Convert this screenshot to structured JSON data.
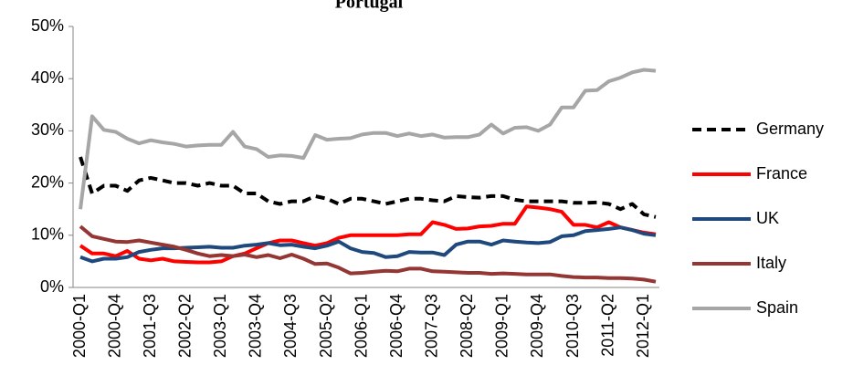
{
  "chart_data": {
    "type": "line",
    "title": "Portugal",
    "categories": [
      "2000-Q1",
      null,
      null,
      "2000-Q4",
      null,
      null,
      "2001-Q3",
      null,
      null,
      "2002-Q2",
      null,
      null,
      "2003-Q1",
      null,
      null,
      "2003-Q4",
      null,
      null,
      "2004-Q3",
      null,
      null,
      "2005-Q2",
      null,
      null,
      "2006-Q1",
      null,
      null,
      "2006-Q4",
      null,
      null,
      "2007-Q3",
      null,
      null,
      "2008-Q2",
      null,
      null,
      "2009-Q1",
      null,
      null,
      "2009-Q4",
      null,
      null,
      "2010-Q3",
      null,
      null,
      "2011-Q2",
      null,
      null,
      "2012-Q1",
      null
    ],
    "ylim": [
      0,
      50
    ],
    "yticks": [
      {
        "value": 0,
        "label": "0%"
      },
      {
        "value": 10,
        "label": "10%"
      },
      {
        "value": 20,
        "label": "20%"
      },
      {
        "value": 30,
        "label": "30%"
      },
      {
        "value": 40,
        "label": "40%"
      },
      {
        "value": 50,
        "label": "50%"
      }
    ],
    "legend": "right",
    "series": [
      {
        "name": "Germany",
        "color": "#000000",
        "dashed": true,
        "values": [
          25,
          18,
          19.5,
          19.5,
          18.5,
          20.5,
          21,
          20.5,
          20,
          20,
          19.5,
          20,
          19.5,
          19.5,
          18,
          18,
          16.5,
          16,
          16.5,
          16.5,
          17.5,
          17,
          16,
          17,
          17,
          16.5,
          16,
          16.5,
          17,
          17,
          16.7,
          16.5,
          17.5,
          17.3,
          17.2,
          17.5,
          17.5,
          16.8,
          16.5,
          16.5,
          16.5,
          16.5,
          16.2,
          16.2,
          16.3,
          16,
          15,
          16,
          14,
          13.5
        ]
      },
      {
        "name": "France",
        "color": "#ff0000",
        "values": [
          8,
          6.5,
          6.5,
          6,
          7,
          5.5,
          5.2,
          5.5,
          5,
          4.9,
          4.8,
          4.8,
          5,
          6,
          6.5,
          7.5,
          8.5,
          9,
          9,
          8.5,
          8,
          8.5,
          9.5,
          10,
          10,
          10,
          10,
          10,
          10.2,
          10.2,
          12.5,
          12,
          11.2,
          11.3,
          11.7,
          11.8,
          12.2,
          12.2,
          15.5,
          15.3,
          15,
          14.5,
          12,
          12,
          11.5,
          12.5,
          11.5,
          11,
          10.5,
          10.2
        ]
      },
      {
        "name": "UK",
        "color": "#1f497d",
        "values": [
          5.8,
          5,
          5.5,
          5.5,
          5.8,
          6.8,
          7.2,
          7.5,
          7.5,
          7.6,
          7.7,
          7.8,
          7.6,
          7.6,
          8,
          8.2,
          8.5,
          8.1,
          8.2,
          7.8,
          7.5,
          8,
          8.8,
          7.5,
          6.8,
          6.6,
          5.8,
          6,
          6.8,
          6.7,
          6.7,
          6.2,
          8.2,
          8.8,
          8.8,
          8.2,
          9,
          8.8,
          8.6,
          8.5,
          8.7,
          9.8,
          10,
          10.8,
          11,
          11.2,
          11.5,
          11,
          10.3,
          10
        ]
      },
      {
        "name": "Italy",
        "color": "#943634",
        "values": [
          11.7,
          9.8,
          9.3,
          8.8,
          8.7,
          9,
          8.6,
          8.2,
          7.8,
          7.2,
          6.5,
          6,
          6.2,
          6,
          6.3,
          5.8,
          6.2,
          5.6,
          6.3,
          5.5,
          4.5,
          4.6,
          3.8,
          2.7,
          2.8,
          3,
          3.2,
          3.1,
          3.6,
          3.6,
          3.1,
          3,
          2.9,
          2.8,
          2.8,
          2.6,
          2.7,
          2.6,
          2.5,
          2.5,
          2.5,
          2.2,
          2,
          1.9,
          1.9,
          1.8,
          1.8,
          1.7,
          1.5,
          1.1
        ]
      },
      {
        "name": "Spain",
        "color": "#a6a6a6",
        "values": [
          15,
          32.8,
          30.2,
          29.8,
          28.5,
          27.6,
          28.2,
          27.8,
          27.5,
          27,
          27.2,
          27.3,
          27.3,
          29.8,
          27,
          26.5,
          25,
          25.3,
          25.2,
          24.8,
          29.2,
          28.3,
          28.5,
          28.6,
          29.3,
          29.6,
          29.6,
          29,
          29.5,
          29,
          29.3,
          28.7,
          28.8,
          28.8,
          29.3,
          31.2,
          29.5,
          30.6,
          30.7,
          30,
          31.2,
          34.5,
          34.5,
          37.7,
          37.8,
          39.5,
          40.2,
          41.2,
          41.7,
          41.5
        ]
      }
    ]
  }
}
